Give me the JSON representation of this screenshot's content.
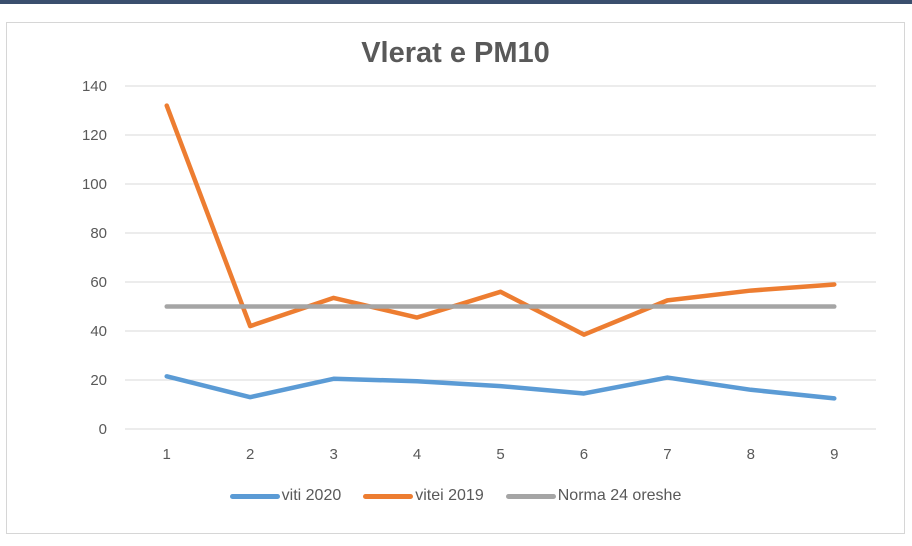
{
  "chart_data": {
    "type": "line",
    "title": "Vlerat e PM10",
    "x": [
      "1",
      "2",
      "3",
      "4",
      "5",
      "6",
      "7",
      "8",
      "9"
    ],
    "ylim": [
      0,
      140
    ],
    "yticks": [
      "0",
      "20",
      "40",
      "60",
      "80",
      "100",
      "120",
      "140"
    ],
    "grid": true,
    "legend_position": "bottom",
    "series": [
      {
        "name": "viti 2020",
        "color": "#5b9bd5",
        "values": [
          21.5,
          13,
          20.5,
          19.5,
          17.5,
          14.5,
          21,
          16,
          12.5
        ]
      },
      {
        "name": "vitei 2019",
        "color": "#ed7d31",
        "values": [
          132,
          42,
          53.5,
          45.5,
          56,
          38.5,
          52.5,
          56.5,
          59
        ]
      },
      {
        "name": "Norma 24 oreshe",
        "color": "#a5a5a5",
        "values": [
          50,
          50,
          50,
          50,
          50,
          50,
          50,
          50,
          50
        ]
      }
    ]
  }
}
